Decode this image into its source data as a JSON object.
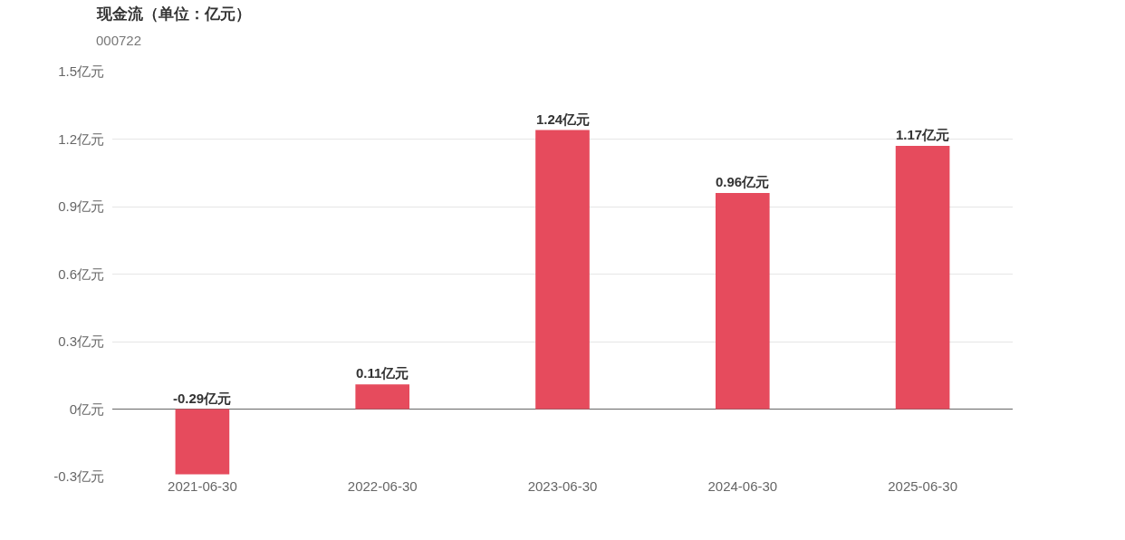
{
  "chart_data": {
    "type": "bar",
    "title": "现金流（单位：亿元）",
    "subtitle": "000722",
    "categories": [
      "2021-06-30",
      "2022-06-30",
      "2023-06-30",
      "2024-06-30",
      "2025-06-30"
    ],
    "values": [
      -0.29,
      0.11,
      1.24,
      0.96,
      1.17
    ],
    "value_labels": [
      "-0.29亿元",
      "0.11亿元",
      "1.24亿元",
      "0.96亿元",
      "1.17亿元"
    ],
    "color": "#e64b5d",
    "ylim": [
      -0.3,
      1.5
    ],
    "yticks": [
      {
        "value": -0.3,
        "label": "-0.3亿元"
      },
      {
        "value": 0,
        "label": "0亿元"
      },
      {
        "value": 0.3,
        "label": "0.3亿元"
      },
      {
        "value": 0.6,
        "label": "0.6亿元"
      },
      {
        "value": 0.9,
        "label": "0.9亿元"
      },
      {
        "value": 1.2,
        "label": "1.2亿元"
      },
      {
        "value": 1.5,
        "label": "1.5亿元"
      }
    ],
    "grid": "y"
  }
}
